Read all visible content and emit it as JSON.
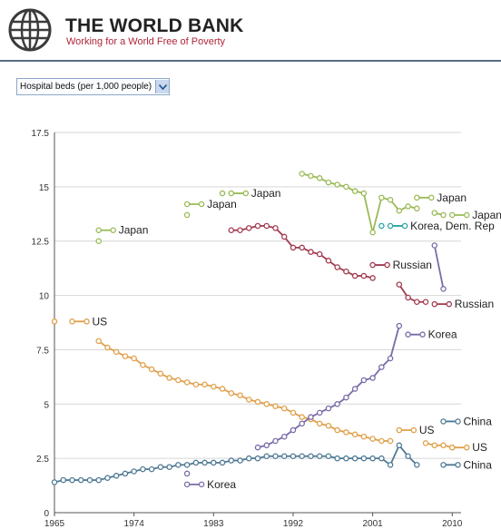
{
  "header": {
    "brand": "THE WORLD BANK",
    "tagline": "Working for a World Free of Poverty",
    "colors": {
      "brand_text": "#222222",
      "tagline": "#b0243a",
      "divider": "#5a6c85"
    },
    "icon": "globe-icon"
  },
  "indicator_select": {
    "value": "Hospital beds (per 1,000 people)",
    "icon": "chevron-down-icon"
  },
  "chart_data": {
    "type": "line",
    "title": "",
    "xlabel": "",
    "ylabel": "",
    "xlim": [
      1965,
      2011
    ],
    "ylim": [
      0,
      17.5
    ],
    "x_ticks": [
      "1965",
      "1974",
      "1983",
      "1992",
      "2001",
      "2010"
    ],
    "y_ticks": [
      "0",
      "2.5",
      "5",
      "7.5",
      "10",
      "12.5",
      "15",
      "17.5"
    ],
    "grid": true,
    "series": [
      {
        "color": "#99bb55",
        "points": [
          [
            1970,
            12.5
          ],
          [
            1980,
            13.7
          ],
          [
            1984,
            14.7
          ],
          [
            1993,
            15.6
          ],
          [
            1994,
            15.5
          ],
          [
            1995,
            15.4
          ],
          [
            1996,
            15.2
          ],
          [
            1997,
            15.1
          ],
          [
            1998,
            15.0
          ],
          [
            1999,
            14.8
          ],
          [
            2000,
            14.7
          ],
          [
            2001,
            12.9
          ],
          [
            2002,
            14.5
          ],
          [
            2003,
            14.4
          ],
          [
            2004,
            13.9
          ],
          [
            2005,
            14.1
          ],
          [
            2006,
            14.0
          ],
          [
            2008,
            13.8
          ],
          [
            2009,
            13.7
          ]
        ]
      },
      {
        "color": "#2aa5a5",
        "points": [
          [
            2002,
            13.2
          ]
        ]
      },
      {
        "color": "#a33a4f",
        "points": [
          [
            1985,
            13.0
          ],
          [
            1986,
            13.0
          ],
          [
            1987,
            13.1
          ],
          [
            1988,
            13.2
          ],
          [
            1989,
            13.2
          ],
          [
            1990,
            13.1
          ],
          [
            1991,
            12.7
          ],
          [
            1992,
            12.2
          ],
          [
            1993,
            12.2
          ],
          [
            1994,
            12.0
          ],
          [
            1995,
            11.9
          ],
          [
            1996,
            11.6
          ],
          [
            1997,
            11.3
          ],
          [
            1998,
            11.1
          ],
          [
            1999,
            10.9
          ],
          [
            2000,
            10.9
          ],
          [
            2001,
            10.8
          ],
          [
            2004,
            10.5
          ],
          [
            2005,
            9.9
          ],
          [
            2006,
            9.7
          ],
          [
            2007,
            9.7
          ]
        ]
      },
      {
        "color": "#e0a04a",
        "points": [
          [
            1965,
            8.8
          ],
          [
            1970,
            7.9
          ],
          [
            1971,
            7.6
          ],
          [
            1972,
            7.4
          ],
          [
            1973,
            7.2
          ],
          [
            1974,
            7.1
          ],
          [
            1975,
            6.8
          ],
          [
            1976,
            6.6
          ],
          [
            1977,
            6.4
          ],
          [
            1978,
            6.2
          ],
          [
            1979,
            6.1
          ],
          [
            1980,
            6.0
          ],
          [
            1981,
            5.9
          ],
          [
            1982,
            5.9
          ],
          [
            1983,
            5.8
          ],
          [
            1984,
            5.7
          ],
          [
            1985,
            5.5
          ],
          [
            1986,
            5.4
          ],
          [
            1987,
            5.2
          ],
          [
            1988,
            5.1
          ],
          [
            1989,
            5.0
          ],
          [
            1990,
            4.9
          ],
          [
            1991,
            4.8
          ],
          [
            1992,
            4.6
          ],
          [
            1993,
            4.4
          ],
          [
            1994,
            4.3
          ],
          [
            1995,
            4.1
          ],
          [
            1996,
            4.0
          ],
          [
            1997,
            3.8
          ],
          [
            1998,
            3.7
          ],
          [
            1999,
            3.6
          ],
          [
            2000,
            3.5
          ],
          [
            2001,
            3.4
          ],
          [
            2002,
            3.3
          ],
          [
            2003,
            3.3
          ],
          [
            2007,
            3.2
          ],
          [
            2008,
            3.1
          ],
          [
            2009,
            3.1
          ],
          [
            2010,
            3.0
          ]
        ]
      },
      {
        "color": "#7a6aa8",
        "points": [
          [
            1980,
            1.8
          ],
          [
            1988,
            3.0
          ],
          [
            1989,
            3.1
          ],
          [
            1990,
            3.3
          ],
          [
            1991,
            3.5
          ],
          [
            1992,
            3.8
          ],
          [
            1993,
            4.1
          ],
          [
            1994,
            4.4
          ],
          [
            1995,
            4.6
          ],
          [
            1996,
            4.8
          ],
          [
            1997,
            5.0
          ],
          [
            1998,
            5.3
          ],
          [
            1999,
            5.7
          ],
          [
            2000,
            6.1
          ],
          [
            2001,
            6.2
          ],
          [
            2002,
            6.7
          ],
          [
            2003,
            7.1
          ],
          [
            2004,
            8.6
          ],
          [
            2008,
            12.3
          ],
          [
            2009,
            10.3
          ]
        ]
      },
      {
        "color": "#4f7a95",
        "points": [
          [
            1965,
            1.4
          ],
          [
            1966,
            1.5
          ],
          [
            1967,
            1.5
          ],
          [
            1968,
            1.5
          ],
          [
            1969,
            1.5
          ],
          [
            1970,
            1.5
          ],
          [
            1971,
            1.6
          ],
          [
            1972,
            1.7
          ],
          [
            1973,
            1.8
          ],
          [
            1974,
            1.9
          ],
          [
            1975,
            2.0
          ],
          [
            1976,
            2.0
          ],
          [
            1977,
            2.1
          ],
          [
            1978,
            2.1
          ],
          [
            1979,
            2.2
          ],
          [
            1980,
            2.2
          ],
          [
            1981,
            2.3
          ],
          [
            1982,
            2.3
          ],
          [
            1983,
            2.3
          ],
          [
            1984,
            2.3
          ],
          [
            1985,
            2.4
          ],
          [
            1986,
            2.4
          ],
          [
            1987,
            2.5
          ],
          [
            1988,
            2.5
          ],
          [
            1989,
            2.6
          ],
          [
            1990,
            2.6
          ],
          [
            1991,
            2.6
          ],
          [
            1992,
            2.6
          ],
          [
            1993,
            2.6
          ],
          [
            1994,
            2.6
          ],
          [
            1995,
            2.6
          ],
          [
            1996,
            2.6
          ],
          [
            1997,
            2.5
          ],
          [
            1998,
            2.5
          ],
          [
            1999,
            2.5
          ],
          [
            2000,
            2.5
          ],
          [
            2001,
            2.5
          ],
          [
            2002,
            2.5
          ],
          [
            2003,
            2.2
          ],
          [
            2004,
            3.1
          ],
          [
            2005,
            2.6
          ],
          [
            2006,
            2.2
          ]
        ]
      }
    ],
    "labels": [
      {
        "text": "Japan",
        "color": "#99bb55",
        "x": 1970,
        "y": 13.0
      },
      {
        "text": "Japan",
        "color": "#99bb55",
        "x": 1980,
        "y": 14.2
      },
      {
        "text": "Japan",
        "color": "#99bb55",
        "x": 1985,
        "y": 14.7
      },
      {
        "text": "Japan",
        "color": "#99bb55",
        "x": 2006,
        "y": 14.5
      },
      {
        "text": "Japan",
        "color": "#99bb55",
        "x": 2010,
        "y": 13.7
      },
      {
        "text": "Korea, Dem. Rep",
        "color": "#2aa5a5",
        "x": 2003,
        "y": 13.2
      },
      {
        "text": "Russian",
        "color": "#a33a4f",
        "x": 2001,
        "y": 11.4
      },
      {
        "text": "Russian",
        "color": "#a33a4f",
        "x": 2008,
        "y": 9.6
      },
      {
        "text": "US",
        "color": "#e0a04a",
        "x": 1967,
        "y": 8.8
      },
      {
        "text": "US",
        "color": "#e0a04a",
        "x": 2004,
        "y": 3.8
      },
      {
        "text": "US",
        "color": "#e0a04a",
        "x": 2010,
        "y": 3.0
      },
      {
        "text": "Korea",
        "color": "#7a6aa8",
        "x": 2005,
        "y": 8.2
      },
      {
        "text": "Korea",
        "color": "#7a6aa8",
        "x": 1980,
        "y": 1.3
      },
      {
        "text": "China",
        "color": "#4f7a95",
        "x": 2009,
        "y": 4.2
      },
      {
        "text": "China",
        "color": "#4f7a95",
        "x": 2009,
        "y": 2.2
      }
    ]
  }
}
